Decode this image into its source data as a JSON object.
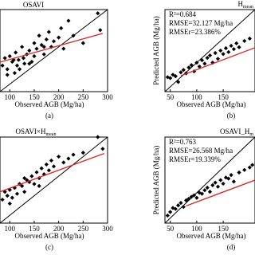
{
  "chart_data": [
    {
      "type": "scatter",
      "title": "OSAVI",
      "panel_label": "(a)",
      "x_label": "Observed AGB (Mg/ha)",
      "xlim": [
        80,
        300
      ],
      "ylim": [
        80,
        300
      ],
      "xticks": [
        100,
        150,
        200,
        250,
        300
      ],
      "x": [
        85,
        90,
        95,
        100,
        105,
        110,
        112,
        115,
        118,
        120,
        125,
        128,
        130,
        135,
        140,
        145,
        150,
        150,
        155,
        160,
        165,
        170,
        175,
        180,
        185,
        190,
        200,
        205,
        210,
        220,
        230,
        250,
        280,
        285,
        95,
        108,
        140,
        170
      ],
      "values": [
        150,
        170,
        140,
        175,
        160,
        130,
        185,
        150,
        165,
        140,
        200,
        170,
        155,
        180,
        190,
        160,
        210,
        175,
        195,
        230,
        205,
        180,
        220,
        240,
        200,
        215,
        225,
        250,
        195,
        270,
        230,
        210,
        290,
        245,
        125,
        165,
        155,
        200
      ],
      "color": "#000000",
      "fit": {
        "x": [
          80,
          290
        ],
        "y": [
          159,
          236
        ],
        "color": "#e02020"
      }
    },
    {
      "type": "scatter",
      "title": "H",
      "title_sub": "mean",
      "panel_label": "(b)",
      "x_label": "Observed AGB (Mg/ha)",
      "y_label": "Predicted AGB (Mg/ha)",
      "annotations": [
        "R²=0.684",
        "RMSE=32.127 Mg/ha",
        "RMSEr=23.386%"
      ],
      "xlim": [
        40,
        210
      ],
      "ylim": [
        40,
        210
      ],
      "xticks": [
        50,
        100,
        150
      ],
      "x": [
        45,
        50,
        55,
        60,
        65,
        70,
        75,
        80,
        85,
        90,
        95,
        100,
        105,
        110,
        115,
        120,
        125,
        130,
        135,
        140,
        145,
        150,
        155,
        160,
        165,
        170,
        175,
        180,
        190,
        200
      ],
      "values": [
        70,
        68,
        75,
        72,
        60,
        80,
        85,
        78,
        90,
        95,
        82,
        100,
        92,
        105,
        98,
        110,
        115,
        100,
        120,
        108,
        125,
        118,
        130,
        122,
        135,
        128,
        140,
        132,
        145,
        150
      ],
      "color": "#000000",
      "fit": {
        "x": [
          70,
          210
        ],
        "y": [
          73,
          131
        ],
        "color": "#e02020"
      }
    },
    {
      "type": "scatter",
      "title": "OSAVI×H",
      "title_sub": "mean",
      "panel_label": "(c)",
      "x_label": "Observed AGB (Mg/ha)",
      "xlim": [
        80,
        300
      ],
      "ylim": [
        80,
        300
      ],
      "xticks": [
        100,
        150,
        200,
        250,
        300
      ],
      "x": [
        85,
        90,
        95,
        100,
        105,
        110,
        115,
        120,
        125,
        130,
        135,
        140,
        145,
        150,
        155,
        160,
        165,
        170,
        175,
        180,
        185,
        190,
        200,
        210,
        220,
        230,
        250,
        280,
        290,
        100,
        130,
        160
      ],
      "values": [
        140,
        160,
        150,
        165,
        145,
        170,
        155,
        180,
        175,
        160,
        190,
        185,
        200,
        180,
        210,
        195,
        220,
        205,
        230,
        215,
        240,
        225,
        250,
        235,
        245,
        255,
        260,
        300,
        270,
        130,
        195,
        175
      ],
      "color": "#000000",
      "fit": {
        "x": [
          80,
          293
        ],
        "y": [
          160,
          258
        ],
        "color": "#e02020"
      }
    },
    {
      "type": "scatter",
      "title": "OSAVI_H",
      "title_sub": "m",
      "panel_label": "(d)",
      "x_label": "Observed AGB (Mg/ha)",
      "y_label": "Predicted AGB (Mg/ha)",
      "annotations": [
        "R²=0.763",
        "RMSE=26.568 Mg/ha",
        "RMSEr=19.339%"
      ],
      "xlim": [
        40,
        210
      ],
      "ylim": [
        40,
        210
      ],
      "xticks": [
        50,
        100,
        150
      ],
      "x": [
        45,
        50,
        55,
        60,
        65,
        70,
        75,
        80,
        85,
        90,
        95,
        100,
        105,
        110,
        115,
        120,
        125,
        130,
        135,
        140,
        145,
        150,
        155,
        160,
        165,
        170,
        180,
        190,
        200,
        205
      ],
      "values": [
        55,
        62,
        70,
        68,
        75,
        80,
        72,
        85,
        88,
        92,
        95,
        90,
        100,
        98,
        105,
        110,
        102,
        115,
        120,
        112,
        125,
        118,
        130,
        128,
        135,
        122,
        140,
        145,
        150,
        155
      ],
      "color": "#000000",
      "fit": {
        "x": [
          80,
          210
        ],
        "y": [
          74,
          125
        ],
        "color": "#e02020"
      }
    }
  ]
}
